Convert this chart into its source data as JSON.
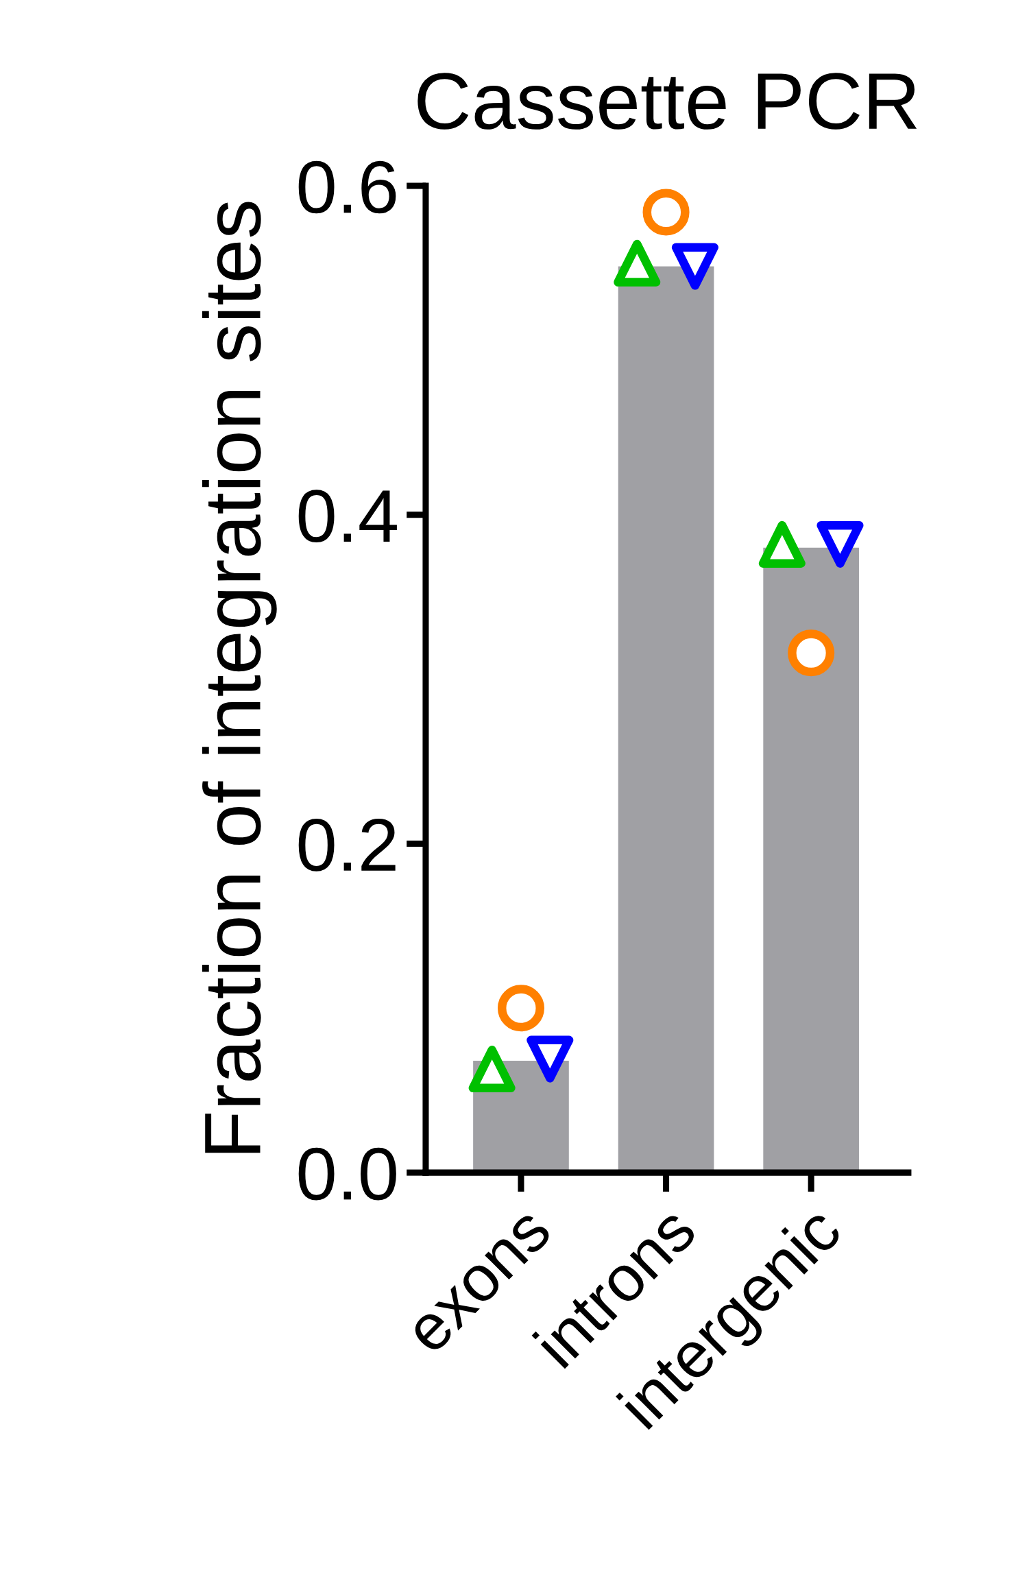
{
  "chart_data": {
    "type": "bar",
    "title": "Cassette PCR",
    "ylabel": "Fraction of integration sites",
    "categories": [
      "exons",
      "introns",
      "intergenic"
    ],
    "ylim": [
      0,
      0.6
    ],
    "yticks": [
      {
        "value": 0,
        "label": "0.0"
      },
      0.2,
      0.4,
      0.6
    ],
    "grid": false,
    "legend": false,
    "series": [
      {
        "color": "#a0a0a4",
        "values": [
          0.068,
          0.551,
          0.38
        ]
      },
      {
        "type": "scatter",
        "marker": "circle",
        "color": "#ff8000",
        "x": [
          "exons",
          "introns",
          "intergenic"
        ],
        "values": [
          0.1,
          0.584,
          0.316
        ]
      },
      {
        "type": "scatter",
        "marker": "triangle",
        "color": "#00c000",
        "x": [
          "exons",
          "introns",
          "intergenic"
        ],
        "values": [
          0.063,
          0.553,
          0.382
        ]
      },
      {
        "type": "scatter",
        "marker": "triangle_down",
        "color": "#0000ff",
        "x": [
          "exons",
          "introns",
          "intergenic"
        ],
        "values": [
          0.069,
          0.551,
          0.382
        ]
      }
    ]
  }
}
